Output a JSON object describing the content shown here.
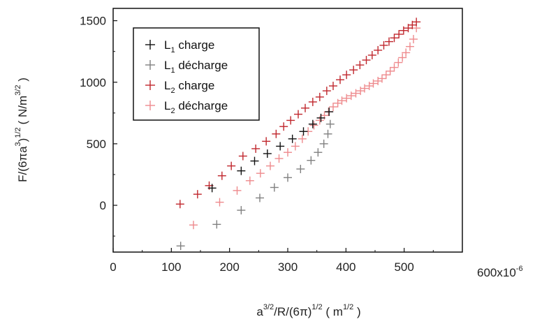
{
  "chart_data": {
    "type": "scatter",
    "title": "",
    "xlabel": {
      "base": "a",
      "sup1": "3/2",
      "mid": "/R/(6π)",
      "sup2": "1/2",
      "units_open": " ( m",
      "units_sup": "1/2",
      "units_close": " )"
    },
    "ylabel": {
      "base": "F/(6πa",
      "sup1": "3",
      "mid": ")",
      "sup2": "1/2",
      "units_open": "( N/m",
      "units_sup": "3/2",
      "units_close": " )"
    },
    "xlim": [
      0,
      600
    ],
    "ylim": [
      -380,
      1600
    ],
    "x_multiplier_label": "600x10",
    "x_multiplier_exp": "-6",
    "x_ticks": [
      0,
      100,
      200,
      300,
      400,
      500
    ],
    "x_tick_labels": [
      "0",
      "100",
      "200",
      "300",
      "400",
      "500"
    ],
    "y_ticks": [
      0,
      500,
      1000,
      1500
    ],
    "y_tick_labels": [
      "0",
      "500",
      "1000",
      "1500"
    ],
    "legend_position": "top-left",
    "series": [
      {
        "name": "L1 charge",
        "label_main": "L",
        "label_sub": "1",
        "label_rest": " charge",
        "color": "#111111",
        "x": [
          170,
          220,
          243,
          265,
          287,
          308,
          327,
          343,
          357,
          371
        ],
        "y": [
          140,
          280,
          360,
          420,
          480,
          540,
          600,
          660,
          710,
          760
        ]
      },
      {
        "name": "L1 décharge",
        "label_main": "L",
        "label_sub": "1",
        "label_rest": " décharge",
        "color": "#808080",
        "x": [
          116,
          178,
          220,
          252,
          277,
          300,
          322,
          340,
          352,
          362,
          369,
          373
        ],
        "y": [
          -330,
          -155,
          -40,
          60,
          145,
          225,
          295,
          365,
          430,
          500,
          580,
          660
        ]
      },
      {
        "name": "L2 charge",
        "label_main": "L",
        "label_sub": "2",
        "label_rest": " charge",
        "color": "#c0272d",
        "x": [
          115,
          145,
          165,
          187,
          203,
          223,
          245,
          263,
          280,
          293,
          305,
          318,
          330,
          343,
          355,
          367,
          378,
          390,
          401,
          413,
          424,
          435,
          445,
          455,
          465,
          474,
          483,
          491,
          499,
          507,
          514,
          521
        ],
        "y": [
          10,
          90,
          160,
          240,
          320,
          400,
          460,
          520,
          580,
          640,
          690,
          740,
          790,
          840,
          880,
          930,
          970,
          1020,
          1060,
          1100,
          1140,
          1180,
          1220,
          1260,
          1300,
          1330,
          1360,
          1390,
          1420,
          1440,
          1465,
          1490
        ]
      },
      {
        "name": "L2 décharge",
        "label_main": "L",
        "label_sub": "2",
        "label_rest": " décharge",
        "color": "#ee8a8d",
        "x": [
          138,
          183,
          213,
          235,
          253,
          270,
          285,
          300,
          313,
          325,
          335,
          345,
          355,
          363,
          370,
          378,
          386,
          393,
          401,
          409,
          417,
          425,
          432,
          440,
          447,
          455,
          462,
          469,
          476,
          483,
          490,
          497,
          503,
          510,
          516,
          521
        ],
        "y": [
          -160,
          25,
          120,
          200,
          260,
          320,
          380,
          430,
          480,
          540,
          600,
          650,
          690,
          730,
          760,
          800,
          830,
          850,
          870,
          890,
          910,
          930,
          950,
          970,
          990,
          1010,
          1030,
          1060,
          1090,
          1120,
          1160,
          1200,
          1240,
          1290,
          1350,
          1440
        ]
      }
    ]
  }
}
